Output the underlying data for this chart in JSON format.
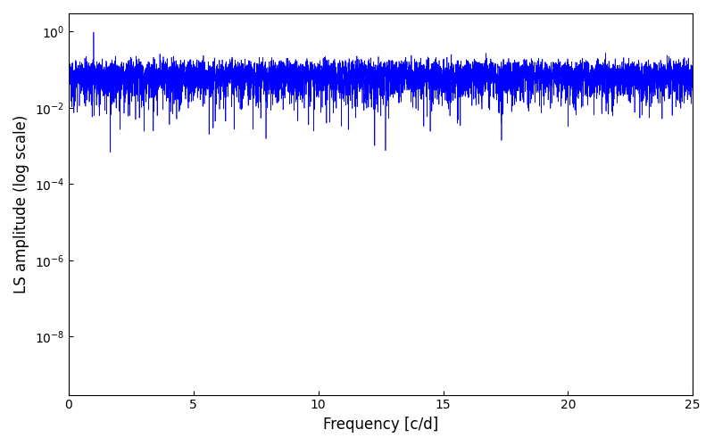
{
  "xlabel": "Frequency [c/d]",
  "ylabel": "LS amplitude (log scale)",
  "xlim": [
    0,
    25
  ],
  "ylim": [
    3e-10,
    3.0
  ],
  "line_color": "#0000ff",
  "line_width": 0.5,
  "background_color": "#ffffff",
  "figsize": [
    8.0,
    5.0
  ],
  "dpi": 100,
  "seed": 12345,
  "n_freq": 8000,
  "freq_max": 25.0,
  "yticks": [
    1e-08,
    1e-06,
    0.0001,
    0.01,
    1.0
  ]
}
